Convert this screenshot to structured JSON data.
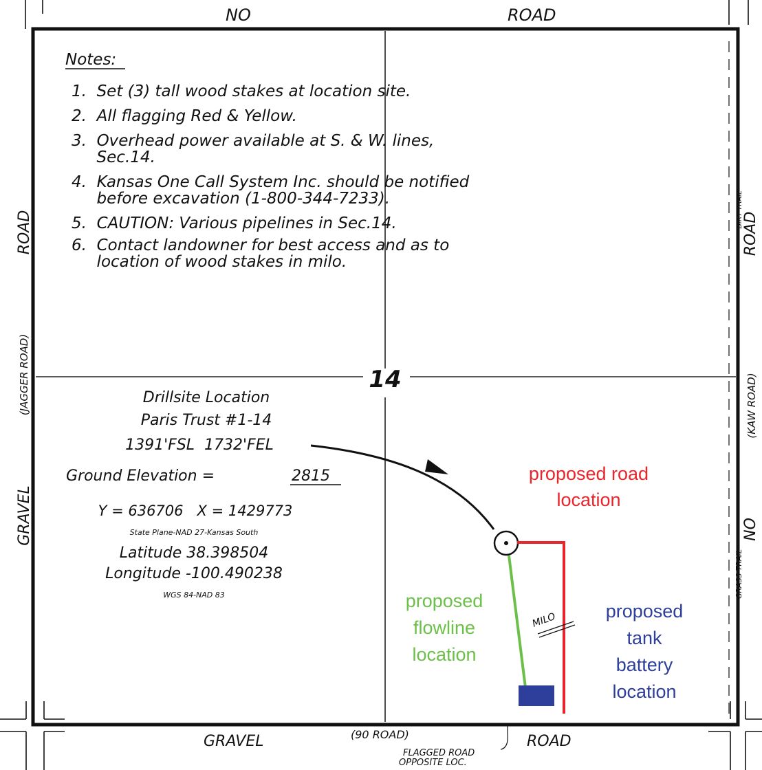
{
  "map": {
    "section_number": "14",
    "roads": {
      "top_left": "NO",
      "top_right": "ROAD",
      "left_upper": "ROAD",
      "left_middle": "(JAGGER ROAD)",
      "left_lower": "GRAVEL",
      "right_dirt_trail": "DIRT TRAIL",
      "right_upper": "ROAD",
      "right_middle": "(KAW ROAD)",
      "right_grass_trail": "GRASS TRAIL",
      "right_lower": "NO",
      "bottom_left": "GRAVEL",
      "bottom_center": "(90 ROAD)",
      "bottom_right": "ROAD",
      "flagged_road_line1": "FLAGGED ROAD",
      "flagged_road_line2": "OPPOSITE LOC."
    },
    "notes": {
      "heading": "Notes:",
      "lines": [
        "1.  Set (3) tall wood stakes at location site.",
        "2.  All flagging Red & Yellow.",
        "3.  Overhead power available at S. & W. lines,",
        "     Sec.14.",
        "4.  Kansas One Call System Inc. should be notified",
        "     before excavation (1-800-344-7233).",
        "5.  CAUTION: Various pipelines in Sec.14.",
        "6.  Contact landowner for best access and as to",
        "     location of wood stakes in milo."
      ]
    },
    "drillsite": {
      "title": "Drillsite Location",
      "well_name": "Paris Trust #1-14",
      "footage": "1391'FSL  1732'FEL",
      "elevation_label": "Ground Elevation = ",
      "elevation_value": "2815",
      "coords": "Y = 636706   X = 1429773",
      "state_plane": "State Plane-NAD 27-Kansas South",
      "latitude": "Latitude 38.398504",
      "longitude": "Longitude -100.490238",
      "datum": "WGS 84-NAD 83"
    },
    "crop_label": "MILO",
    "annotations": {
      "road": {
        "lines": [
          "proposed road",
          "location"
        ],
        "color": "#e8252b"
      },
      "flowline": {
        "lines": [
          "proposed",
          "flowline",
          "location"
        ],
        "color": "#6cc04a"
      },
      "tank": {
        "lines": [
          "proposed",
          "tank",
          "battery",
          "location"
        ],
        "color": "#2e3f9b"
      }
    }
  }
}
